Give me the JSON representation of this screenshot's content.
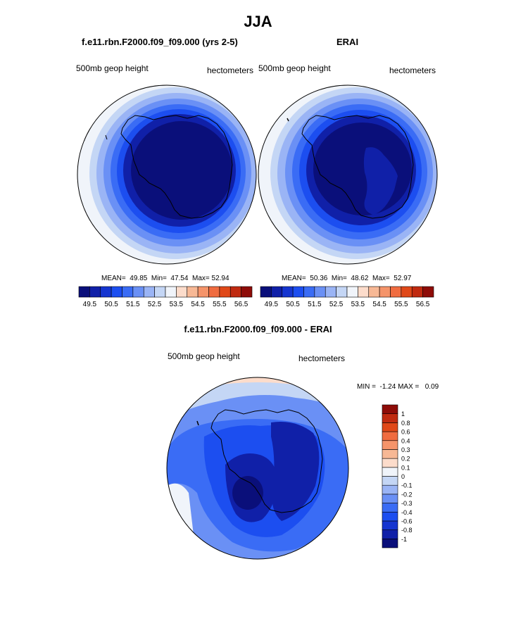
{
  "main_title": "JJA",
  "panels": [
    {
      "title": "f.e11.rbn.F2000.f09_f09.000 (yrs 2-5)",
      "left_label": "500mb geop height",
      "right_label": "hectometers",
      "stats": {
        "mean": "49.85",
        "min": "47.54",
        "max": "52.94"
      }
    },
    {
      "title": "ERAI",
      "left_label": "500mb geop height",
      "right_label": "hectometers",
      "stats": {
        "mean": "50.36",
        "min": "48.62",
        "max": "52.97"
      }
    },
    {
      "title": "f.e11.rbn.F2000.f09_f09.000 - ERAI",
      "left_label": "500mb geop height",
      "right_label": "hectometers",
      "stats": {
        "min": "-1.24",
        "max": "0.09"
      }
    }
  ],
  "stat_labels": {
    "mean": "MEAN=",
    "min": "Min=",
    "max": "Max=",
    "diff_min": "MIN =",
    "diff_max": "MAX ="
  },
  "colorbar_horizontal": {
    "colors": [
      "#0a0f7a",
      "#1020a8",
      "#1535d0",
      "#1c4ef0",
      "#3a6cf5",
      "#6a90f5",
      "#9ab4f5",
      "#c4d6f5",
      "#f0f4fa",
      "#fcdccb",
      "#f7b895",
      "#f5946a",
      "#f06c40",
      "#e04818",
      "#c02a10",
      "#8e0c08"
    ],
    "tick_labels": [
      "49.5",
      "50.5",
      "51.5",
      "52.5",
      "53.5",
      "54.5",
      "55.5",
      "56.5"
    ]
  },
  "colorbar_vertical": {
    "colors": [
      "#0a0f7a",
      "#1020a8",
      "#1535d0",
      "#1c4ef0",
      "#3a6cf5",
      "#6a90f5",
      "#9ab4f5",
      "#c4d6f5",
      "#f0f4fa",
      "#fcdccb",
      "#f7b895",
      "#f5946a",
      "#f06c40",
      "#e04818",
      "#c02a10",
      "#8e0c08"
    ],
    "tick_labels": [
      "-1",
      "-0.8",
      "-0.6",
      "-0.4",
      "-0.3",
      "-0.2",
      "-0.1",
      "0",
      "0.1",
      "0.2",
      "0.3",
      "0.4",
      "0.6",
      "0.8",
      "1"
    ]
  }
}
